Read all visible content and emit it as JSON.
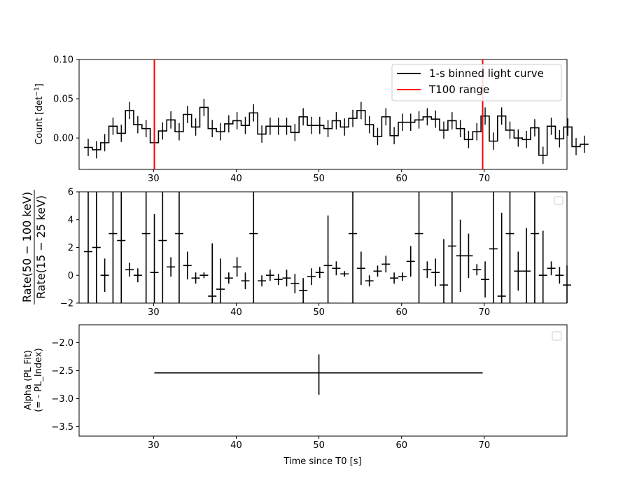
{
  "chart_data": [
    {
      "type": "line",
      "xlabel": "",
      "ylabel_main": "Count [det",
      "ylabel_sup": "−1",
      "ylabel_tail": "]",
      "xlim": [
        21,
        80
      ],
      "ylim": [
        -0.04,
        0.1
      ],
      "xticks": [
        30,
        40,
        50,
        60,
        70
      ],
      "xtick_labels": [
        "30",
        "40",
        "50",
        "60",
        "70"
      ],
      "yticks": [
        0.0,
        0.05,
        0.1
      ],
      "ytick_labels": [
        "0.00",
        "0.05",
        "0.10"
      ],
      "legend": {
        "position": "upper right",
        "entries": [
          {
            "label": "1-s binned light curve",
            "color": "#000000"
          },
          {
            "label": "T100 range",
            "color": "#ff0000"
          }
        ]
      },
      "t100_lines": [
        30.1,
        69.8
      ],
      "bin_start": 21.6,
      "bin_width": 1.0,
      "values": [
        -0.012,
        -0.015,
        -0.006,
        0.015,
        0.006,
        0.035,
        0.017,
        0.012,
        -0.006,
        0.009,
        0.023,
        0.008,
        0.03,
        0.014,
        0.039,
        0.012,
        0.008,
        0.018,
        0.022,
        0.016,
        0.032,
        0.005,
        0.015,
        0.015,
        0.015,
        0.007,
        0.027,
        0.016,
        0.016,
        0.012,
        0.022,
        0.014,
        0.025,
        0.035,
        0.017,
        0.002,
        0.027,
        0.003,
        0.02,
        0.02,
        0.023,
        0.027,
        0.024,
        0.01,
        0.022,
        0.012,
        -0.002,
        0.008,
        0.028,
        -0.004,
        0.028,
        0.01,
        0.0,
        -0.002,
        0.013,
        -0.022,
        0.015,
        -0.001,
        0.014,
        -0.011,
        -0.008
      ],
      "errors": [
        0.011,
        0.011,
        0.011,
        0.011,
        0.011,
        0.011,
        0.011,
        0.011,
        0.011,
        0.011,
        0.011,
        0.011,
        0.011,
        0.011,
        0.011,
        0.011,
        0.011,
        0.011,
        0.011,
        0.011,
        0.011,
        0.011,
        0.011,
        0.011,
        0.011,
        0.011,
        0.011,
        0.011,
        0.011,
        0.011,
        0.011,
        0.011,
        0.011,
        0.011,
        0.011,
        0.011,
        0.011,
        0.011,
        0.011,
        0.011,
        0.011,
        0.011,
        0.011,
        0.011,
        0.011,
        0.011,
        0.011,
        0.011,
        0.011,
        0.011,
        0.011,
        0.011,
        0.011,
        0.011,
        0.011,
        0.011,
        0.011,
        0.011,
        0.011,
        0.011,
        0.011
      ]
    },
    {
      "type": "scatter",
      "ylabel_numerator": "Rate(50 − 100 keV)",
      "ylabel_denominator": "Rate(15 − 25 keV)",
      "xlim": [
        21,
        80
      ],
      "ylim": [
        -2,
        6
      ],
      "xticks": [
        30,
        40,
        50,
        60,
        70
      ],
      "xtick_labels": [
        "30",
        "40",
        "50",
        "60",
        "70"
      ],
      "yticks": [
        -2,
        0,
        2,
        4,
        6
      ],
      "ytick_labels": [
        "−2",
        "0",
        "2",
        "4",
        "6"
      ],
      "points": [
        {
          "x": 22.1,
          "y": 1.7,
          "yerr": 8
        },
        {
          "x": 23.1,
          "y": 2.0,
          "yerr": 8
        },
        {
          "x": 24.1,
          "y": 0.0,
          "yerr": 1.2
        },
        {
          "x": 25.1,
          "y": 3.0,
          "yerr": 8
        },
        {
          "x": 26.1,
          "y": 2.5,
          "yerr": 8
        },
        {
          "x": 27.1,
          "y": 0.4,
          "yerr": 0.5
        },
        {
          "x": 28.1,
          "y": 0.0,
          "yerr": 0.5
        },
        {
          "x": 29.1,
          "y": 3.0,
          "yerr": 8
        },
        {
          "x": 30.1,
          "y": 0.2,
          "yerr": 4.2
        },
        {
          "x": 31.1,
          "y": 2.5,
          "yerr": 8
        },
        {
          "x": 32.1,
          "y": 0.6,
          "yerr": 0.7
        },
        {
          "x": 33.1,
          "y": 3.0,
          "yerr": 8
        },
        {
          "x": 34.1,
          "y": 0.7,
          "yerr": 1.0
        },
        {
          "x": 35.1,
          "y": -0.2,
          "yerr": 0.4
        },
        {
          "x": 36.1,
          "y": 0.0,
          "yerr": 0.2
        },
        {
          "x": 37.1,
          "y": -1.5,
          "yerr": 3.8
        },
        {
          "x": 38.1,
          "y": -1.0,
          "yerr": 2.2
        },
        {
          "x": 39.1,
          "y": -0.2,
          "yerr": 0.4
        },
        {
          "x": 40.1,
          "y": 0.6,
          "yerr": 0.7
        },
        {
          "x": 41.1,
          "y": -0.4,
          "yerr": 0.6
        },
        {
          "x": 42.1,
          "y": 3.0,
          "yerr": 8
        },
        {
          "x": 43.1,
          "y": -0.4,
          "yerr": 0.4
        },
        {
          "x": 44.1,
          "y": 0.0,
          "yerr": 0.4
        },
        {
          "x": 45.1,
          "y": -0.3,
          "yerr": 0.4
        },
        {
          "x": 46.1,
          "y": -0.2,
          "yerr": 0.6
        },
        {
          "x": 47.1,
          "y": -0.6,
          "yerr": 0.7
        },
        {
          "x": 48.1,
          "y": -1.1,
          "yerr": 0.9
        },
        {
          "x": 49.1,
          "y": -0.1,
          "yerr": 0.6
        },
        {
          "x": 50.1,
          "y": 0.2,
          "yerr": 0.4
        },
        {
          "x": 51.1,
          "y": 0.7,
          "yerr": 3.6
        },
        {
          "x": 52.1,
          "y": 0.5,
          "yerr": 0.5
        },
        {
          "x": 53.1,
          "y": 0.1,
          "yerr": 0.2
        },
        {
          "x": 54.1,
          "y": 3.0,
          "yerr": 8
        },
        {
          "x": 55.1,
          "y": 0.5,
          "yerr": 1.2
        },
        {
          "x": 56.1,
          "y": -0.4,
          "yerr": 0.4
        },
        {
          "x": 57.1,
          "y": 0.3,
          "yerr": 0.4
        },
        {
          "x": 58.1,
          "y": 0.8,
          "yerr": 0.6
        },
        {
          "x": 59.1,
          "y": -0.2,
          "yerr": 0.4
        },
        {
          "x": 60.1,
          "y": -0.1,
          "yerr": 0.3
        },
        {
          "x": 61.1,
          "y": 1.0,
          "yerr": 1.1
        },
        {
          "x": 62.1,
          "y": 3.0,
          "yerr": 8
        },
        {
          "x": 63.1,
          "y": 0.4,
          "yerr": 0.6
        },
        {
          "x": 64.1,
          "y": 0.2,
          "yerr": 1.0
        },
        {
          "x": 65.1,
          "y": -0.7,
          "yerr": 3.3
        },
        {
          "x": 66.1,
          "y": 2.1,
          "yerr": 8
        },
        {
          "x": 67.1,
          "y": 1.4,
          "yerr": 2.6
        },
        {
          "x": 68.1,
          "y": 1.4,
          "yerr": 1.6
        },
        {
          "x": 69.1,
          "y": 0.4,
          "yerr": 0.4
        },
        {
          "x": 70.1,
          "y": -0.3,
          "yerr": 1.3
        },
        {
          "x": 71.1,
          "y": 1.9,
          "yerr": 8
        },
        {
          "x": 72.1,
          "y": -1.5,
          "yerr": 6.0
        },
        {
          "x": 73.1,
          "y": 3.0,
          "yerr": 8
        },
        {
          "x": 74.1,
          "y": 0.3,
          "yerr": 1.4
        },
        {
          "x": 75.1,
          "y": 0.3,
          "yerr": 3.1
        },
        {
          "x": 76.1,
          "y": 3.0,
          "yerr": 8
        },
        {
          "x": 77.1,
          "y": 0.0,
          "yerr": 3.2
        },
        {
          "x": 78.1,
          "y": 0.5,
          "yerr": 0.5
        },
        {
          "x": 79.1,
          "y": 0.0,
          "yerr": 0.6
        },
        {
          "x": 80.0,
          "y": -0.7,
          "yerr": 1.4
        }
      ]
    },
    {
      "type": "scatter",
      "xlabel": "Time since T0 [s]",
      "ylabel_line1": "Alpha (PL Fit)",
      "ylabel_line2": "(=  - PL_Index)",
      "xlim": [
        21,
        80
      ],
      "ylim": [
        -3.67,
        -1.68
      ],
      "xticks": [
        30,
        40,
        50,
        60,
        70
      ],
      "xtick_labels": [
        "30",
        "40",
        "50",
        "60",
        "70"
      ],
      "yticks": [
        -3.5,
        -3.0,
        -2.5,
        -2.0
      ],
      "ytick_labels": [
        "−3.5",
        "−3.0",
        "−2.5",
        "−2.0"
      ],
      "points": [
        {
          "x": 50.0,
          "y": -2.54,
          "x_start": 30.1,
          "x_end": 69.8,
          "yerr_low": -2.93,
          "yerr_high": -2.21
        }
      ]
    }
  ]
}
